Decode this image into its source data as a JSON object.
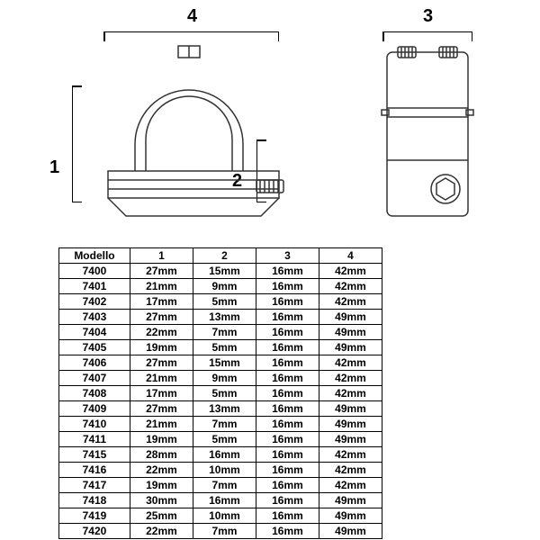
{
  "diagram": {
    "labels": {
      "dim1": "1",
      "dim2": "2",
      "dim3": "3",
      "dim4": "4"
    },
    "stroke_color": "#333333",
    "stroke_width": 1.5,
    "fill_color": "#ffffff"
  },
  "table": {
    "columns": [
      "Modello",
      "1",
      "2",
      "3",
      "4"
    ],
    "rows": [
      [
        "7400",
        "27mm",
        "15mm",
        "16mm",
        "42mm"
      ],
      [
        "7401",
        "21mm",
        "9mm",
        "16mm",
        "42mm"
      ],
      [
        "7402",
        "17mm",
        "5mm",
        "16mm",
        "42mm"
      ],
      [
        "7403",
        "27mm",
        "13mm",
        "16mm",
        "49mm"
      ],
      [
        "7404",
        "22mm",
        "7mm",
        "16mm",
        "49mm"
      ],
      [
        "7405",
        "19mm",
        "5mm",
        "16mm",
        "49mm"
      ],
      [
        "7406",
        "27mm",
        "15mm",
        "16mm",
        "42mm"
      ],
      [
        "7407",
        "21mm",
        "9mm",
        "16mm",
        "42mm"
      ],
      [
        "7408",
        "17mm",
        "5mm",
        "16mm",
        "42mm"
      ],
      [
        "7409",
        "27mm",
        "13mm",
        "16mm",
        "49mm"
      ],
      [
        "7410",
        "21mm",
        "7mm",
        "16mm",
        "49mm"
      ],
      [
        "7411",
        "19mm",
        "5mm",
        "16mm",
        "49mm"
      ],
      [
        "7415",
        "28mm",
        "16mm",
        "16mm",
        "42mm"
      ],
      [
        "7416",
        "22mm",
        "10mm",
        "16mm",
        "42mm"
      ],
      [
        "7417",
        "19mm",
        "7mm",
        "16mm",
        "42mm"
      ],
      [
        "7418",
        "30mm",
        "16mm",
        "16mm",
        "49mm"
      ],
      [
        "7419",
        "25mm",
        "10mm",
        "16mm",
        "49mm"
      ],
      [
        "7420",
        "22mm",
        "7mm",
        "16mm",
        "49mm"
      ]
    ],
    "col_widths": [
      "22%",
      "19.5%",
      "19.5%",
      "19.5%",
      "19.5%"
    ]
  }
}
